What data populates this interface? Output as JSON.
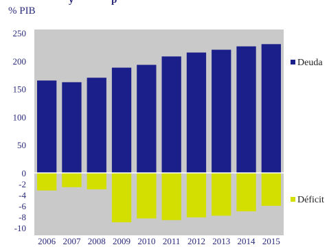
{
  "chart_data": {
    "type": "bar",
    "title": "y",
    "subtitle": "p",
    "unit_label": "% PIB",
    "categories": [
      "2006",
      "2007",
      "2008",
      "2009",
      "2010",
      "2011",
      "2012",
      "2013",
      "2014",
      "2015"
    ],
    "series": [
      {
        "name": "Deuda",
        "color": "#1b1f8a",
        "values": [
          165,
          162,
          170,
          188,
          193,
          208,
          215,
          220,
          226,
          230
        ]
      },
      {
        "name": "Déficit",
        "color": "#d2df00",
        "values": [
          -3.2,
          -2.6,
          -3.0,
          -9.0,
          -8.3,
          -8.6,
          -8.1,
          -7.8,
          -7.0,
          -6.0
        ]
      }
    ],
    "y_upper": {
      "range": [
        0,
        250
      ],
      "ticks": [
        "250",
        "200",
        "150",
        "100",
        "50",
        "0"
      ]
    },
    "y_lower": {
      "range": [
        -10,
        0
      ],
      "ticks": [
        "-2",
        "-4",
        "-6",
        "-8",
        "-10"
      ]
    },
    "legend_position": "right",
    "grid": false
  }
}
